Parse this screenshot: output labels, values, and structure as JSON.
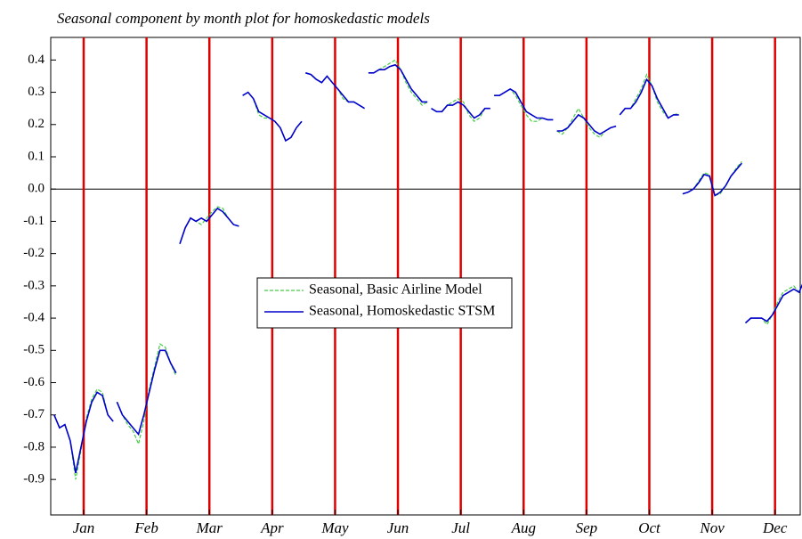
{
  "chart_data": {
    "type": "line",
    "title": "Seasonal component by month plot for homoskedastic models",
    "categories": [
      "Jan",
      "Feb",
      "Mar",
      "Apr",
      "May",
      "Jun",
      "Jul",
      "Aug",
      "Sep",
      "Oct",
      "Nov",
      "Dec"
    ],
    "category_line_color": "#e00000",
    "zero_line": true,
    "legend": "center",
    "ylim": [
      -1.01,
      0.47
    ],
    "yticks": [
      -0.9,
      -0.8,
      -0.7,
      -0.6,
      -0.5,
      -0.4,
      -0.3,
      -0.2,
      -0.1,
      {
        "value": 0,
        "label": "0.0"
      },
      0.1,
      0.2,
      0.3,
      0.4
    ],
    "series": [
      {
        "name": "Seasonal, Basic Airline Model",
        "color": "#44cc44",
        "dashed": true,
        "values": [
          [
            -0.7,
            -0.74,
            -0.73,
            -0.78,
            -0.9,
            -0.81,
            -0.71,
            -0.65,
            -0.62,
            -0.63,
            -0.7,
            -0.72
          ],
          [
            -0.66,
            -0.7,
            -0.73,
            -0.75,
            -0.79,
            -0.72,
            -0.62,
            -0.55,
            -0.48,
            -0.49,
            -0.54,
            -0.58
          ],
          [
            -0.17,
            -0.12,
            -0.09,
            -0.1,
            -0.11,
            -0.09,
            -0.07,
            -0.055,
            -0.06,
            -0.09,
            -0.11,
            -0.115
          ],
          [
            0.29,
            0.3,
            0.28,
            0.23,
            0.22,
            0.22,
            0.21,
            0.19,
            0.15,
            0.16,
            0.19,
            0.21
          ],
          [
            0.36,
            0.355,
            0.34,
            0.33,
            0.35,
            0.33,
            0.31,
            0.28,
            0.27,
            0.27,
            0.26,
            0.25
          ],
          [
            0.36,
            0.36,
            0.37,
            0.38,
            0.39,
            0.4,
            0.37,
            0.33,
            0.3,
            0.28,
            0.26,
            0.27
          ],
          [
            0.25,
            0.24,
            0.24,
            0.26,
            0.27,
            0.28,
            0.27,
            0.23,
            0.21,
            0.22,
            0.25,
            0.25
          ],
          [
            0.29,
            0.29,
            0.3,
            0.31,
            0.29,
            0.26,
            0.23,
            0.21,
            0.21,
            0.22,
            0.215,
            0.215
          ],
          [
            0.18,
            0.17,
            0.19,
            0.22,
            0.25,
            0.22,
            0.19,
            0.17,
            0.16,
            0.18,
            0.19,
            0.195
          ],
          [
            0.23,
            0.25,
            0.25,
            0.28,
            0.31,
            0.355,
            0.32,
            0.27,
            0.24,
            0.22,
            0.23,
            0.235
          ],
          [
            -0.015,
            -0.01,
            0.0,
            0.025,
            0.05,
            0.045,
            -0.02,
            -0.015,
            0.01,
            0.04,
            0.065,
            0.085
          ],
          [
            -0.415,
            -0.4,
            -0.4,
            -0.4,
            -0.42,
            -0.39,
            -0.35,
            -0.32,
            -0.31,
            -0.3,
            -0.32,
            -0.28
          ]
        ]
      },
      {
        "name": "Seasonal, Homoskedastic STSM",
        "color": "#0000cc",
        "dashed": false,
        "values": [
          [
            -0.7,
            -0.74,
            -0.73,
            -0.78,
            -0.88,
            -0.8,
            -0.72,
            -0.66,
            -0.63,
            -0.64,
            -0.7,
            -0.72
          ],
          [
            -0.66,
            -0.7,
            -0.72,
            -0.74,
            -0.76,
            -0.7,
            -0.63,
            -0.56,
            -0.5,
            -0.5,
            -0.54,
            -0.57
          ],
          [
            -0.17,
            -0.12,
            -0.09,
            -0.1,
            -0.09,
            -0.1,
            -0.08,
            -0.06,
            -0.07,
            -0.09,
            -0.11,
            -0.115
          ],
          [
            0.29,
            0.3,
            0.28,
            0.24,
            0.23,
            0.22,
            0.21,
            0.19,
            0.15,
            0.16,
            0.19,
            0.21
          ],
          [
            0.36,
            0.355,
            0.34,
            0.33,
            0.35,
            0.33,
            0.31,
            0.29,
            0.27,
            0.27,
            0.26,
            0.25
          ],
          [
            0.36,
            0.36,
            0.37,
            0.37,
            0.38,
            0.385,
            0.37,
            0.34,
            0.31,
            0.29,
            0.27,
            0.27
          ],
          [
            0.25,
            0.24,
            0.24,
            0.26,
            0.26,
            0.27,
            0.26,
            0.24,
            0.22,
            0.23,
            0.25,
            0.25
          ],
          [
            0.29,
            0.29,
            0.3,
            0.31,
            0.3,
            0.27,
            0.24,
            0.23,
            0.22,
            0.22,
            0.215,
            0.215
          ],
          [
            0.18,
            0.18,
            0.19,
            0.21,
            0.23,
            0.22,
            0.2,
            0.18,
            0.17,
            0.18,
            0.19,
            0.195
          ],
          [
            0.23,
            0.25,
            0.25,
            0.27,
            0.3,
            0.34,
            0.32,
            0.28,
            0.25,
            0.22,
            0.23,
            0.23
          ],
          [
            -0.015,
            -0.01,
            0.0,
            0.02,
            0.045,
            0.04,
            -0.02,
            -0.01,
            0.01,
            0.04,
            0.06,
            0.08
          ],
          [
            -0.415,
            -0.4,
            -0.4,
            -0.4,
            -0.41,
            -0.39,
            -0.36,
            -0.33,
            -0.32,
            -0.31,
            -0.32,
            -0.28
          ]
        ]
      }
    ]
  }
}
